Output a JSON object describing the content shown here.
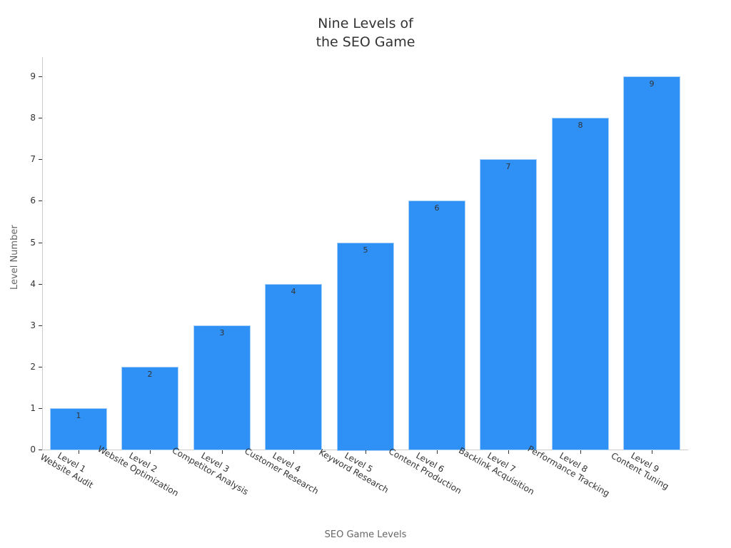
{
  "chart_data": {
    "type": "bar",
    "title": "Nine Levels of the SEO Game",
    "title_lines": [
      "Nine Levels of",
      "the SEO Game"
    ],
    "xlabel": "SEO Game Levels",
    "ylabel": "Level Number",
    "categories": [
      "Level 1\nWebsite Audit",
      "Level 2\nWebsite Optimization",
      "Level 3\nCompetitor Analysis",
      "Level 4\nCustomer Research",
      "Level 5\nKeyword Research",
      "Level 6\nContent Production",
      "Level 7\nBacklink Acquisition",
      "Level 8\nPerformance Tracking",
      "Level 9\nContent Tuning"
    ],
    "category_lines": [
      [
        "Level 1",
        "Website Audit"
      ],
      [
        "Level 2",
        "Website Optimization"
      ],
      [
        "Level 3",
        "Competitor Analysis"
      ],
      [
        "Level 4",
        "Customer Research"
      ],
      [
        "Level 5",
        "Keyword Research"
      ],
      [
        "Level 6",
        "Content Production"
      ],
      [
        "Level 7",
        "Backlink Acquisition"
      ],
      [
        "Level 8",
        "Performance Tracking"
      ],
      [
        "Level 9",
        "Content Tuning"
      ]
    ],
    "values": [
      1,
      2,
      3,
      4,
      5,
      6,
      7,
      8,
      9
    ],
    "data_labels": [
      "1",
      "2",
      "3",
      "4",
      "5",
      "6",
      "7",
      "8",
      "9"
    ],
    "yticks": [
      "0",
      "1",
      "2",
      "3",
      "4",
      "5",
      "6",
      "7",
      "8",
      "9"
    ],
    "ylim": [
      0,
      9.5
    ],
    "grid": false,
    "legend": null,
    "bar_color": "#2f90f6"
  }
}
